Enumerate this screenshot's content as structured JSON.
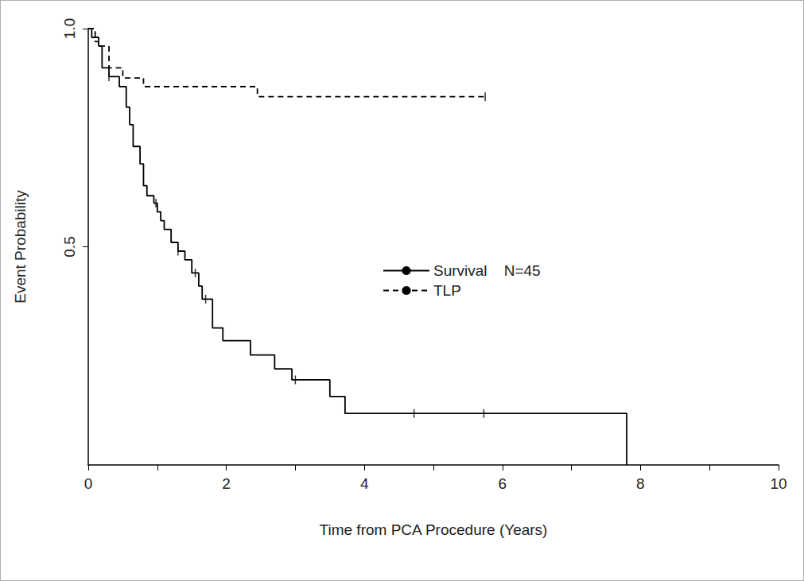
{
  "chart_data": {
    "type": "step",
    "x_label": "Time from PCA Procedure (Years)",
    "y_label": "Event Probability",
    "xlim": [
      0,
      10
    ],
    "xticks": [
      0,
      2,
      4,
      6,
      8,
      10
    ],
    "ylim": [
      0,
      1
    ],
    "yticks": [
      0.5,
      {
        "value": 1,
        "label": "1.0"
      }
    ],
    "grid": false,
    "legend": "center",
    "series": [
      {
        "name": "Survival    N=45",
        "color": "#000000",
        "line_style": "solid",
        "marker": "tick",
        "x": [
          0,
          0.05,
          0.15,
          0.2,
          0.3,
          0.45,
          0.55,
          0.6,
          0.65,
          0.75,
          0.8,
          0.85,
          0.95,
          1.0,
          1.05,
          1.1,
          1.2,
          1.3,
          1.4,
          1.5,
          1.6,
          1.65,
          1.8,
          1.95,
          2.35,
          2.7,
          2.95,
          3.5,
          3.72,
          7.8
        ],
        "values": [
          1.0,
          0.98,
          0.96,
          0.91,
          0.89,
          0.867,
          0.82,
          0.78,
          0.73,
          0.69,
          0.64,
          0.617,
          0.6,
          0.58,
          0.56,
          0.54,
          0.51,
          0.49,
          0.47,
          0.44,
          0.41,
          0.38,
          0.314,
          0.285,
          0.252,
          0.22,
          0.195,
          0.157,
          0.118,
          0
        ],
        "censor_x": [
          0.3,
          0.98,
          1.3,
          1.55,
          1.7,
          3.0,
          4.72,
          5.73
        ],
        "censor_values": [
          0.89,
          0.6,
          0.49,
          0.44,
          0.38,
          0.195,
          0.118,
          0.118
        ]
      },
      {
        "name": "TLP",
        "color": "#000000",
        "line_style": "dashed",
        "marker": "tick",
        "x": [
          0,
          0.1,
          0.15,
          0.3,
          0.5,
          0.8,
          2.45,
          5.75
        ],
        "values": [
          1.0,
          0.97,
          0.96,
          0.91,
          0.887,
          0.867,
          0.844,
          0.844
        ],
        "censor_x": [
          5.75
        ],
        "censor_values": [
          0.844
        ]
      }
    ]
  }
}
